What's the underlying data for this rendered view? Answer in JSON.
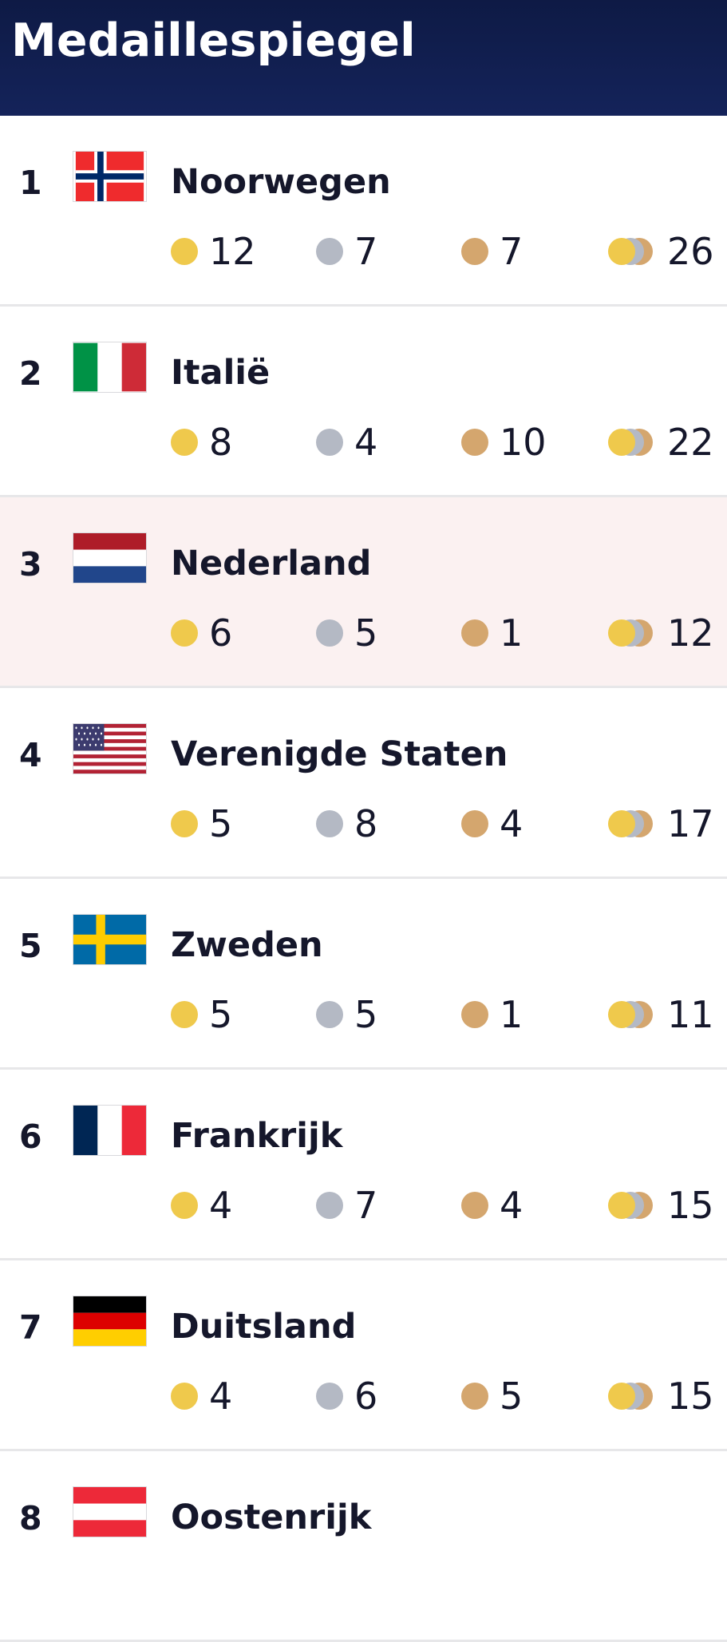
{
  "header": {
    "title": "Medaillespiegel"
  },
  "countries": [
    {
      "rank": "1",
      "name": "Noorwegen",
      "flag": "norway",
      "gold": "12",
      "silver": "7",
      "bronze": "7",
      "total": "26"
    },
    {
      "rank": "2",
      "name": "Italië",
      "flag": "italy",
      "gold": "8",
      "silver": "4",
      "bronze": "10",
      "total": "22"
    },
    {
      "rank": "3",
      "name": "Nederland",
      "flag": "netherlands",
      "gold": "6",
      "silver": "5",
      "bronze": "1",
      "total": "12"
    },
    {
      "rank": "4",
      "name": "Verenigde Staten",
      "flag": "usa",
      "gold": "5",
      "silver": "8",
      "bronze": "4",
      "total": "17"
    },
    {
      "rank": "5",
      "name": "Zweden",
      "flag": "sweden",
      "gold": "5",
      "silver": "5",
      "bronze": "1",
      "total": "11"
    },
    {
      "rank": "6",
      "name": "Frankrijk",
      "flag": "france",
      "gold": "4",
      "silver": "7",
      "bronze": "4",
      "total": "15"
    },
    {
      "rank": "7",
      "name": "Duitsland",
      "flag": "germany",
      "gold": "4",
      "silver": "6",
      "bronze": "5",
      "total": "15"
    },
    {
      "rank": "8",
      "name": "Oostenrijk",
      "flag": "austria"
    }
  ],
  "colors": {
    "header_bg": "#0e1a45",
    "gold": "#efc94c",
    "silver": "#b4b9c4",
    "bronze": "#d4a66e",
    "highlight_row": "#fbf1f1"
  },
  "icons": {
    "gold": "gold-medal-icon",
    "silver": "silver-medal-icon",
    "bronze": "bronze-medal-icon",
    "total": "total-medals-icon"
  }
}
